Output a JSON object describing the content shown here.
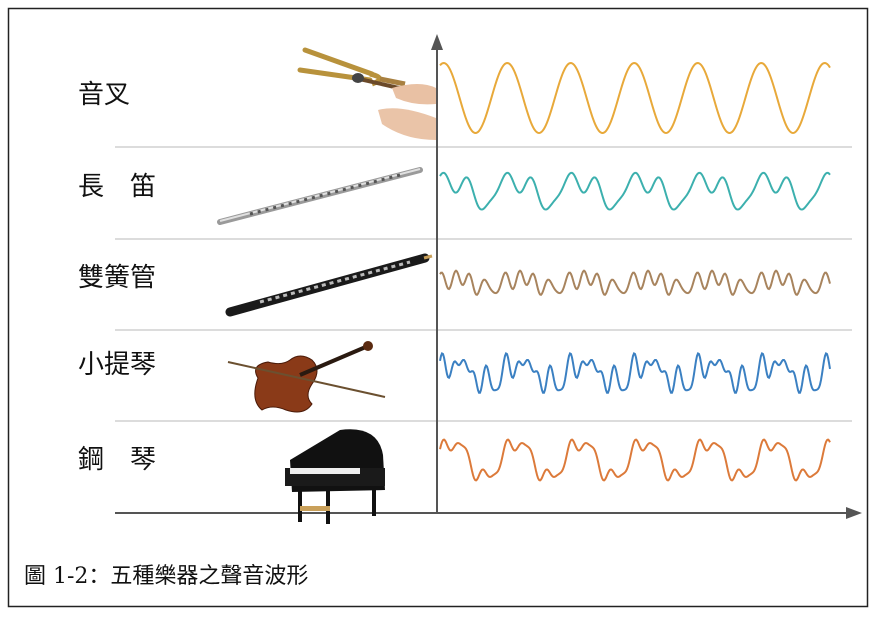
{
  "rows": [
    {
      "label": "音叉"
    },
    {
      "label": "長　笛"
    },
    {
      "label": "雙簧管"
    },
    {
      "label": "小提琴"
    },
    {
      "label": "鋼　琴"
    }
  ],
  "caption": "圖 1-2：五種樂器之聲音波形"
}
